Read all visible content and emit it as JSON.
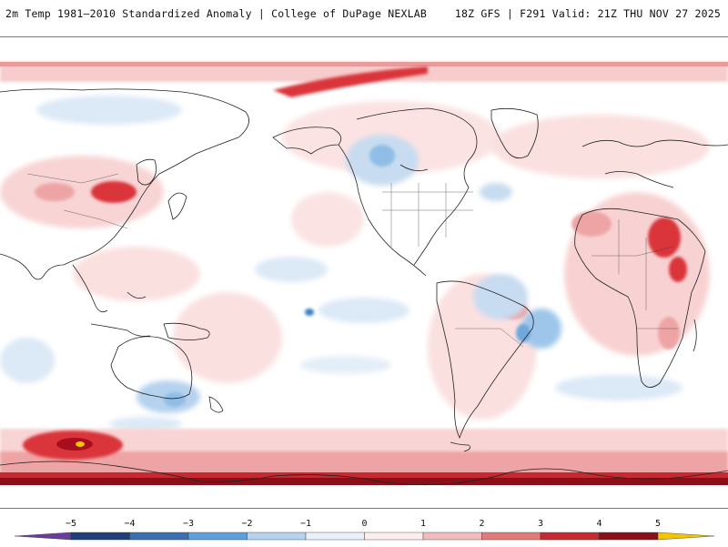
{
  "header": {
    "left_title": "2m Temp 1981–2010 Standardized Anomaly | College of DuPage NEXLAB",
    "right_title": "18Z GFS | F291 Valid: 21Z THU NOV 27 2025"
  },
  "legend": {
    "ticks": [
      "−5",
      "−4",
      "−3",
      "−2",
      "−1",
      "0",
      "1",
      "2",
      "3",
      "4",
      "5"
    ],
    "tick_values": [
      -5,
      -4,
      -3,
      -2,
      -1,
      0,
      1,
      2,
      3,
      4,
      5
    ],
    "colors": {
      "-5": "#6a3d9a",
      "-4": "#1f3f7a",
      "-3": "#3a7fc4",
      "-2": "#8fbde6",
      "-1": "#dce9f6",
      "0": "#ffffff",
      "1": "#fbe0e0",
      "2": "#eea4a4",
      "3": "#d9363a",
      "4": "#a80f1e",
      "5": "#f5c400"
    }
  },
  "map": {
    "projection": "equirectangular, Pacific-centered",
    "central_longitude": 180
  }
}
